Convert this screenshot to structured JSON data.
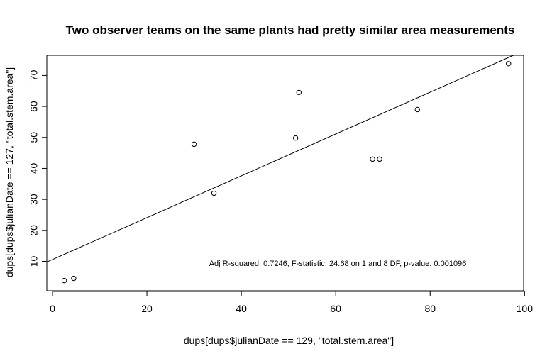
{
  "chart_data": {
    "type": "scatter",
    "title": "Two observer teams on the same plants had pretty similar area measurements",
    "xlabel": "dups[dups$julianDate == 129, \"total.stem.area\"]",
    "ylabel": "dups[dups$julianDate == 127, \"total.stem.area\"]",
    "xlim": [
      -1.2,
      99.8
    ],
    "ylim": [
      0.5,
      76.5
    ],
    "xticks": [
      0,
      20,
      40,
      60,
      80,
      100
    ],
    "yticks": [
      10,
      20,
      30,
      40,
      50,
      60,
      70
    ],
    "points": [
      {
        "x": 2.5,
        "y": 3.8
      },
      {
        "x": 4.5,
        "y": 4.5
      },
      {
        "x": 30.0,
        "y": 47.8
      },
      {
        "x": 34.2,
        "y": 32.0
      },
      {
        "x": 51.5,
        "y": 49.8
      },
      {
        "x": 52.2,
        "y": 64.5
      },
      {
        "x": 67.8,
        "y": 43.0
      },
      {
        "x": 69.3,
        "y": 43.0
      },
      {
        "x": 77.3,
        "y": 59.0
      },
      {
        "x": 96.6,
        "y": 73.8
      }
    ],
    "regression_line": {
      "intercept": 10.6,
      "slope": 0.675
    },
    "annotation": "Adj R-squared:  0.7246, F-statistic: 24.68 on 1 and 8 DF,  p-value: 0.001096",
    "grid": false
  }
}
